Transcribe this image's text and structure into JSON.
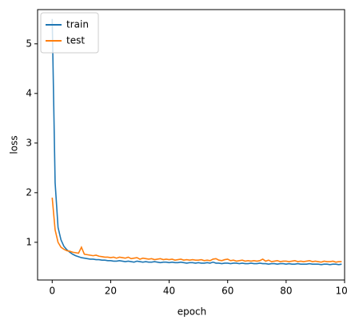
{
  "chart_data": {
    "type": "line",
    "x_label": "epoch",
    "y_label": "loss",
    "x": [
      0,
      1,
      2,
      3,
      4,
      5,
      6,
      7,
      8,
      9,
      10,
      11,
      12,
      13,
      14,
      15,
      16,
      17,
      18,
      19,
      20,
      21,
      22,
      23,
      24,
      25,
      26,
      27,
      28,
      29,
      30,
      31,
      32,
      33,
      34,
      35,
      36,
      37,
      38,
      39,
      40,
      41,
      42,
      43,
      44,
      45,
      46,
      47,
      48,
      49,
      50,
      51,
      52,
      53,
      54,
      55,
      56,
      57,
      58,
      59,
      60,
      61,
      62,
      63,
      64,
      65,
      66,
      67,
      68,
      69,
      70,
      71,
      72,
      73,
      74,
      75,
      76,
      77,
      78,
      79,
      80,
      81,
      82,
      83,
      84,
      85,
      86,
      87,
      88,
      89,
      90,
      91,
      92,
      93,
      94,
      95,
      96,
      97,
      98,
      99
    ],
    "series": [
      {
        "name": "train",
        "color": "#1f77b4",
        "values": [
          5.5,
          2.2,
          1.3,
          1.05,
          0.92,
          0.85,
          0.8,
          0.76,
          0.73,
          0.71,
          0.69,
          0.68,
          0.67,
          0.66,
          0.66,
          0.65,
          0.65,
          0.64,
          0.64,
          0.63,
          0.63,
          0.62,
          0.62,
          0.63,
          0.62,
          0.61,
          0.62,
          0.61,
          0.6,
          0.62,
          0.61,
          0.6,
          0.61,
          0.6,
          0.6,
          0.61,
          0.6,
          0.59,
          0.6,
          0.6,
          0.59,
          0.6,
          0.59,
          0.59,
          0.6,
          0.59,
          0.58,
          0.59,
          0.59,
          0.58,
          0.59,
          0.58,
          0.58,
          0.59,
          0.58,
          0.6,
          0.58,
          0.58,
          0.57,
          0.58,
          0.58,
          0.57,
          0.58,
          0.58,
          0.57,
          0.58,
          0.57,
          0.57,
          0.58,
          0.57,
          0.57,
          0.58,
          0.57,
          0.57,
          0.56,
          0.57,
          0.57,
          0.56,
          0.57,
          0.57,
          0.56,
          0.57,
          0.56,
          0.56,
          0.57,
          0.56,
          0.56,
          0.56,
          0.57,
          0.56,
          0.56,
          0.56,
          0.55,
          0.56,
          0.56,
          0.55,
          0.56,
          0.56,
          0.55,
          0.56
        ]
      },
      {
        "name": "test",
        "color": "#ff7f0e",
        "values": [
          1.9,
          1.25,
          1.0,
          0.9,
          0.86,
          0.83,
          0.82,
          0.8,
          0.79,
          0.78,
          0.9,
          0.76,
          0.75,
          0.74,
          0.73,
          0.74,
          0.72,
          0.71,
          0.7,
          0.7,
          0.69,
          0.7,
          0.68,
          0.7,
          0.69,
          0.68,
          0.7,
          0.67,
          0.68,
          0.69,
          0.66,
          0.68,
          0.67,
          0.66,
          0.67,
          0.65,
          0.66,
          0.67,
          0.65,
          0.66,
          0.65,
          0.66,
          0.64,
          0.65,
          0.66,
          0.64,
          0.65,
          0.64,
          0.65,
          0.64,
          0.64,
          0.65,
          0.63,
          0.64,
          0.63,
          0.66,
          0.67,
          0.64,
          0.63,
          0.65,
          0.66,
          0.63,
          0.64,
          0.62,
          0.63,
          0.64,
          0.62,
          0.63,
          0.62,
          0.63,
          0.62,
          0.63,
          0.66,
          0.62,
          0.64,
          0.61,
          0.62,
          0.63,
          0.61,
          0.62,
          0.62,
          0.61,
          0.62,
          0.63,
          0.61,
          0.62,
          0.61,
          0.62,
          0.63,
          0.61,
          0.62,
          0.61,
          0.6,
          0.62,
          0.61,
          0.61,
          0.62,
          0.6,
          0.61,
          0.61
        ]
      }
    ],
    "xlim": [
      -5,
      100
    ],
    "xticks": [
      0,
      20,
      40,
      60,
      80,
      100
    ],
    "ylim": [
      0.24,
      5.69
    ],
    "yticks": [
      1,
      2,
      3,
      4,
      5
    ],
    "grid": false,
    "legend": "upper left"
  }
}
